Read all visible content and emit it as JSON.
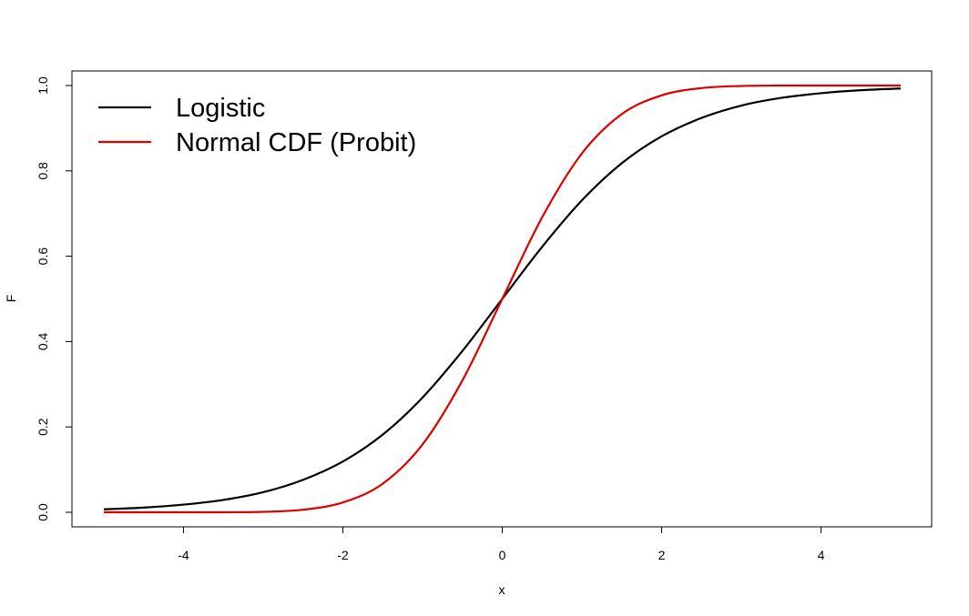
{
  "chart_data": {
    "type": "line",
    "title": "",
    "xlabel": "x",
    "ylabel": "F",
    "xlim": [
      -5,
      5
    ],
    "ylim": [
      0,
      1
    ],
    "x_ticks": [
      -4,
      -2,
      0,
      2,
      4
    ],
    "y_ticks": [
      0.0,
      0.2,
      0.4,
      0.6,
      0.8,
      1.0
    ],
    "x_tick_labels": [
      "-4",
      "-2",
      "0",
      "2",
      "4"
    ],
    "y_tick_labels": [
      "0.0",
      "0.2",
      "0.4",
      "0.6",
      "0.8",
      "1.0"
    ],
    "grid": false,
    "legend_position": "top-left",
    "series": [
      {
        "name": "Logistic",
        "color": "#000000",
        "x": [
          -5,
          -4.5,
          -4,
          -3.5,
          -3,
          -2.5,
          -2,
          -1.5,
          -1,
          -0.5,
          0,
          0.5,
          1,
          1.5,
          2,
          2.5,
          3,
          3.5,
          4,
          4.5,
          5
        ],
        "y": [
          0.007,
          0.011,
          0.018,
          0.029,
          0.047,
          0.076,
          0.119,
          0.182,
          0.269,
          0.378,
          0.5,
          0.622,
          0.731,
          0.818,
          0.881,
          0.924,
          0.953,
          0.971,
          0.982,
          0.989,
          0.993
        ]
      },
      {
        "name": "Normal CDF (Probit)",
        "color": "#dd0000",
        "x": [
          -5,
          -4.5,
          -4,
          -3.5,
          -3,
          -2.5,
          -2,
          -1.5,
          -1,
          -0.5,
          0,
          0.5,
          1,
          1.5,
          2,
          2.5,
          3,
          3.5,
          4,
          4.5,
          5
        ],
        "y": [
          0.0,
          0.0,
          0.0,
          0.0,
          0.001,
          0.006,
          0.023,
          0.067,
          0.159,
          0.309,
          0.5,
          0.691,
          0.841,
          0.933,
          0.977,
          0.994,
          0.999,
          1.0,
          1.0,
          1.0,
          1.0
        ]
      }
    ]
  }
}
